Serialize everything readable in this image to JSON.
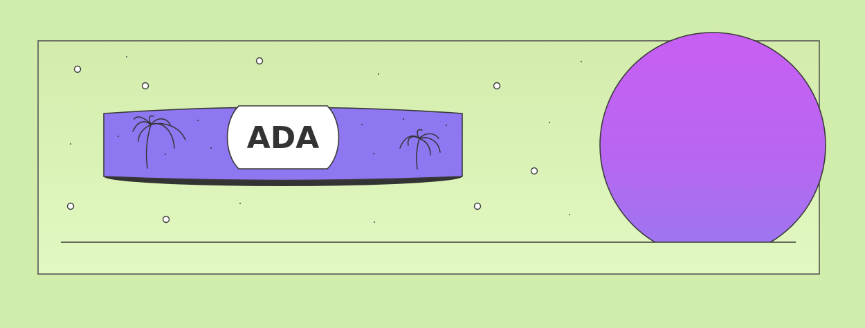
{
  "scene": {
    "band_label": "ADA",
    "palette": {
      "background": "#d1edab",
      "panel_top": "#d3ecab",
      "panel_bottom": "#e2f8c2",
      "band": "#8e77f1",
      "band_shadow": "#333333",
      "label_badge": "#ffffff",
      "sphere_top": "#c85ff4",
      "sphere_bottom": "#9a78f0",
      "outline": "#3a3a3a"
    },
    "icons": [
      "palm-tree-icon",
      "star-dot-icon"
    ]
  }
}
